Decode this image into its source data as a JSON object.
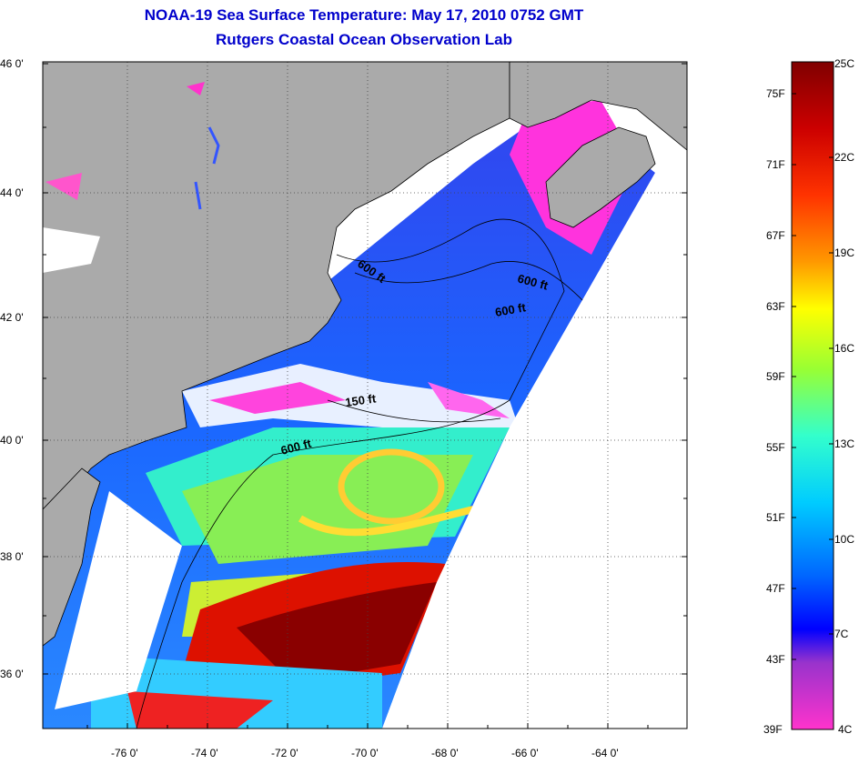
{
  "title": {
    "line1": "NOAA-19 Sea Surface Temperature:  May 17, 2010 0752 GMT",
    "line2": "Rutgers Coastal Ocean Observation Lab"
  },
  "map": {
    "lat_labels": [
      "46 0'",
      "44 0'",
      "42 0'",
      "40 0'",
      "38 0'",
      "36 0'"
    ],
    "lon_labels": [
      "-76 0'",
      "-74 0'",
      "-72 0'",
      "-70 0'",
      "-68 0'",
      "-66 0'",
      "-64 0'"
    ],
    "depth_labels": [
      "600 ft",
      "600 ft",
      "600 ft",
      "150 ft",
      "600 ft"
    ]
  },
  "colorbar": {
    "fahrenheit": [
      "75F",
      "71F",
      "67F",
      "63F",
      "59F",
      "55F",
      "51F",
      "47F",
      "43F",
      "39F"
    ],
    "celsius": [
      "25C",
      "22C",
      "19C",
      "16C",
      "13C",
      "10C",
      "7C",
      "4C"
    ]
  },
  "colors": {
    "land": "#aaaaaa",
    "cloud": "#ffffff",
    "title": "#0000cc"
  }
}
